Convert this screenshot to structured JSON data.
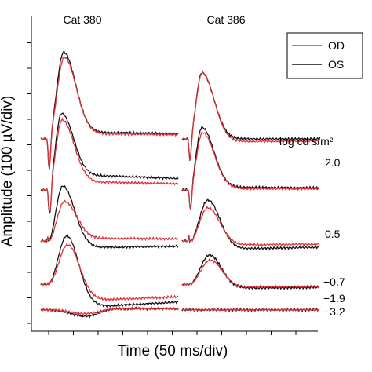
{
  "chart_data": {
    "type": "line",
    "xlabel": "Time (50 ms/div)",
    "ylabel": "Amplitude (100 µV/div)",
    "legend": {
      "placement": "top-right",
      "entries": [
        {
          "name": "OD",
          "color": "#e0303a"
        },
        {
          "name": "OS",
          "color": "#111111"
        }
      ]
    },
    "panels": [
      {
        "title": "Cat 380",
        "x_range_ms": [
          0,
          450
        ]
      },
      {
        "title": "Cat 386",
        "x_range_ms": [
          0,
          450
        ]
      }
    ],
    "intensity_header": "log cd s/m²",
    "intensity_labels": [
      "2.0",
      "0.5",
      "−0.7",
      "−1.9",
      "−3.2"
    ],
    "traces": [
      {
        "panel": 0,
        "series": "OS",
        "intensity": "2.0",
        "baseline_div": 6.8,
        "awave_div": -1.25,
        "bwave_div": 3.4,
        "bpeak_ms": 75,
        "late_div": 0.25,
        "awave_ms": 28
      },
      {
        "panel": 0,
        "series": "OD",
        "intensity": "2.0",
        "baseline_div": 6.8,
        "awave_div": -1.2,
        "bwave_div": 3.2,
        "bpeak_ms": 77,
        "late_div": 0.2,
        "awave_ms": 28
      },
      {
        "panel": 0,
        "series": "OS",
        "intensity": "0.5",
        "baseline_div": 4.8,
        "awave_div": -1.15,
        "bwave_div": 3.0,
        "bpeak_ms": 68,
        "late_div": 0.55,
        "awave_ms": 30
      },
      {
        "panel": 0,
        "series": "OD",
        "intensity": "0.5",
        "baseline_div": 4.8,
        "awave_div": -1.05,
        "bwave_div": 2.75,
        "bpeak_ms": 70,
        "late_div": 0.3,
        "awave_ms": 30
      },
      {
        "panel": 0,
        "series": "OS",
        "intensity": "-0.7",
        "baseline_div": 2.8,
        "awave_div": -0.05,
        "bwave_div": 2.15,
        "bpeak_ms": 72,
        "late_div": -0.25,
        "awave_ms": 35
      },
      {
        "panel": 0,
        "series": "OD",
        "intensity": "-0.7",
        "baseline_div": 2.8,
        "awave_div": -0.05,
        "bwave_div": 1.55,
        "bpeak_ms": 78,
        "late_div": 0.1,
        "awave_ms": 35
      },
      {
        "panel": 0,
        "series": "OS",
        "intensity": "-1.9",
        "baseline_div": 1.1,
        "awave_div": 0.0,
        "bwave_div": 1.9,
        "bpeak_ms": 85,
        "late_div": -0.85,
        "awave_ms": 40
      },
      {
        "panel": 0,
        "series": "OD",
        "intensity": "-1.9",
        "baseline_div": 1.1,
        "awave_div": 0.0,
        "bwave_div": 1.55,
        "bpeak_ms": 88,
        "late_div": -0.6,
        "awave_ms": 40
      },
      {
        "panel": 0,
        "series": "OS",
        "intensity": "-3.2",
        "baseline_div": 0.1,
        "awave_div": 0.0,
        "bwave_div": -0.25,
        "bpeak_ms": 150,
        "late_div": 0.05,
        "awave_ms": 40
      },
      {
        "panel": 0,
        "series": "OD",
        "intensity": "-3.2",
        "baseline_div": 0.1,
        "awave_div": 0.0,
        "bwave_div": -0.15,
        "bpeak_ms": 150,
        "late_div": 0.05,
        "awave_ms": 40
      },
      {
        "panel": 1,
        "series": "OS",
        "intensity": "2.0",
        "baseline_div": 6.8,
        "awave_div": -0.9,
        "bwave_div": 2.6,
        "bpeak_ms": 65,
        "late_div": 0.0,
        "awave_ms": 26
      },
      {
        "panel": 1,
        "series": "OD",
        "intensity": "2.0",
        "baseline_div": 6.8,
        "awave_div": -0.9,
        "bwave_div": 2.6,
        "bpeak_ms": 66,
        "late_div": -0.1,
        "awave_ms": 26
      },
      {
        "panel": 1,
        "series": "OS",
        "intensity": "0.5",
        "baseline_div": 4.8,
        "awave_div": -0.85,
        "bwave_div": 2.45,
        "bpeak_ms": 65,
        "late_div": 0.1,
        "awave_ms": 28
      },
      {
        "panel": 1,
        "series": "OD",
        "intensity": "0.5",
        "baseline_div": 4.8,
        "awave_div": -0.85,
        "bwave_div": 2.25,
        "bpeak_ms": 67,
        "late_div": 0.05,
        "awave_ms": 28
      },
      {
        "panel": 1,
        "series": "OS",
        "intensity": "-0.7",
        "baseline_div": 2.8,
        "awave_div": -0.05,
        "bwave_div": 1.6,
        "bpeak_ms": 85,
        "late_div": -0.3,
        "awave_ms": 35
      },
      {
        "panel": 1,
        "series": "OD",
        "intensity": "-0.7",
        "baseline_div": 2.8,
        "awave_div": -0.05,
        "bwave_div": 1.3,
        "bpeak_ms": 85,
        "late_div": -0.15,
        "awave_ms": 35
      },
      {
        "panel": 1,
        "series": "OS",
        "intensity": "-1.9",
        "baseline_div": 1.1,
        "awave_div": 0.0,
        "bwave_div": 1.15,
        "bpeak_ms": 90,
        "late_div": -0.15,
        "awave_ms": 40
      },
      {
        "panel": 1,
        "series": "OD",
        "intensity": "-1.9",
        "baseline_div": 1.1,
        "awave_div": 0.0,
        "bwave_div": 0.95,
        "bpeak_ms": 92,
        "late_div": -0.1,
        "awave_ms": 40
      },
      {
        "panel": 1,
        "series": "OS",
        "intensity": "-3.2",
        "baseline_div": 0.1,
        "awave_div": 0.0,
        "bwave_div": 0.0,
        "bpeak_ms": 100,
        "late_div": 0.0,
        "awave_ms": 40
      },
      {
        "panel": 1,
        "series": "OD",
        "intensity": "-3.2",
        "baseline_div": 0.1,
        "awave_div": 0.0,
        "bwave_div": 0.0,
        "bpeak_ms": 100,
        "late_div": 0.0,
        "awave_ms": 40
      }
    ]
  }
}
